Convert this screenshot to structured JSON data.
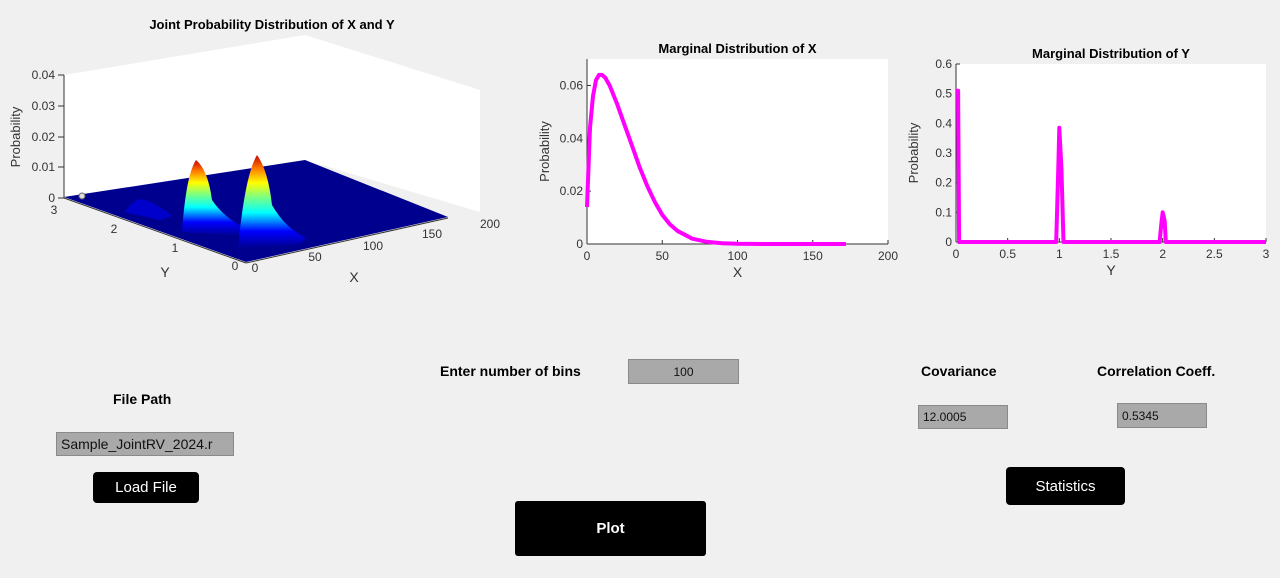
{
  "colors": {
    "background": "#f0f0f0",
    "marginal_line": "#ff00ff",
    "surface_floor": "#00008f",
    "field_bg": "#a9a9a9",
    "button_bg": "#000000",
    "button_text": "#ffffff"
  },
  "chart_data": [
    {
      "type": "surface",
      "title": "Joint Probability Distribution of X and Y",
      "xlabel": "X",
      "ylabel": "Y",
      "zlabel": "Probability",
      "xlim": [
        0,
        200
      ],
      "ylim": [
        0,
        3
      ],
      "zlim": [
        0,
        0.04
      ],
      "x_ticks": [
        "0",
        "50",
        "100",
        "150",
        "200"
      ],
      "y_ticks": [
        "0",
        "1",
        "2",
        "3"
      ],
      "z_ticks": [
        "0",
        "0.01",
        "0.02",
        "0.03",
        "0.04"
      ],
      "colormap": "jet",
      "peaks": [
        {
          "y": 0,
          "x": 10,
          "z": 0.034
        },
        {
          "y": 1,
          "x": 10,
          "z": 0.026
        },
        {
          "y": 2,
          "x": 10,
          "z": 0.007
        }
      ]
    },
    {
      "type": "line",
      "title": "Marginal Distribution of X",
      "xlabel": "X",
      "ylabel": "Probability",
      "xlim": [
        0,
        200
      ],
      "ylim": [
        0,
        0.07
      ],
      "x_ticks": [
        "0",
        "50",
        "100",
        "150",
        "200"
      ],
      "y_ticks": [
        "0",
        "0.02",
        "0.04",
        "0.06"
      ],
      "series": [
        {
          "x": [
            0,
            2,
            4,
            6,
            8,
            10,
            12,
            15,
            20,
            25,
            30,
            35,
            40,
            45,
            50,
            55,
            60,
            70,
            80,
            90,
            100,
            120,
            150,
            172
          ],
          "y": [
            0.014,
            0.044,
            0.056,
            0.062,
            0.064,
            0.064,
            0.063,
            0.06,
            0.053,
            0.045,
            0.037,
            0.029,
            0.022,
            0.016,
            0.011,
            0.0075,
            0.005,
            0.002,
            0.0008,
            0.0003,
            0.0001,
            0,
            0,
            0
          ]
        }
      ]
    },
    {
      "type": "line",
      "title": "Marginal Distribution of Y",
      "xlabel": "Y",
      "ylabel": "Probability",
      "xlim": [
        0,
        3
      ],
      "ylim": [
        0,
        0.6
      ],
      "x_ticks": [
        "0",
        "0.5",
        "1",
        "1.5",
        "2",
        "2.5",
        "3"
      ],
      "y_ticks": [
        "0",
        "0.1",
        "0.2",
        "0.3",
        "0.4",
        "0.5",
        "0.6"
      ],
      "series": [
        {
          "x": [
            0,
            0.02,
            0.03,
            0.97,
            0.99,
            1.0,
            1.02,
            1.04,
            1.97,
            1.99,
            2.0,
            2.02,
            2.03,
            3.0
          ],
          "y": [
            0.51,
            0.51,
            0,
            0,
            0.25,
            0.385,
            0.25,
            0,
            0,
            0.07,
            0.1,
            0.07,
            0,
            0
          ]
        }
      ]
    }
  ],
  "controls": {
    "bins_label": "Enter number of bins",
    "bins_value": "100",
    "file_path_label": "File Path",
    "file_path_value": "Sample_JointRV_2024.r",
    "load_button": "Load File",
    "plot_button": "Plot",
    "covariance_label": "Covariance",
    "covariance_value": "12.0005",
    "correlation_label": "Correlation Coeff.",
    "correlation_value": "0.5345",
    "statistics_button": "Statistics"
  }
}
